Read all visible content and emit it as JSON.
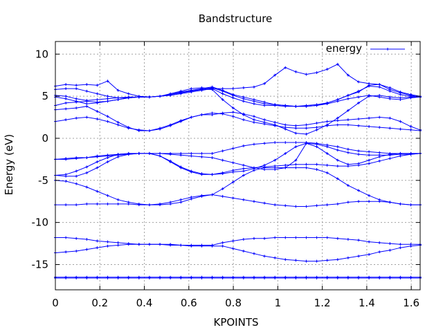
{
  "chart_data": {
    "type": "line",
    "title": "Bandstructure",
    "xlabel": "KPOINTS",
    "ylabel": "Energy (eV)",
    "xlim": [
      0,
      1.64
    ],
    "ylim": [
      -18,
      11.5
    ],
    "xticks": [
      0,
      0.2,
      0.4,
      0.6,
      0.8,
      1,
      1.2,
      1.4,
      1.6
    ],
    "xtick_labels": [
      "0",
      "0.2",
      "0.4",
      "0.6",
      "0.8",
      "1",
      "1.2",
      "1.4",
      "1.6"
    ],
    "yticks": [
      -15,
      -10,
      -5,
      0,
      5,
      10
    ],
    "ytick_labels": [
      "-15",
      "-10",
      "-5",
      "0",
      "5",
      "10"
    ],
    "grid": true,
    "legend": {
      "position": "top-right",
      "entries": [
        "energy"
      ]
    },
    "color": "#0000ff",
    "marker": "plus",
    "x": [
      0,
      0.047,
      0.094,
      0.141,
      0.188,
      0.235,
      0.282,
      0.329,
      0.376,
      0.423,
      0.47,
      0.517,
      0.564,
      0.611,
      0.658,
      0.705,
      0.752,
      0.799,
      0.846,
      0.893,
      0.94,
      0.987,
      1.034,
      1.081,
      1.128,
      1.175,
      1.222,
      1.269,
      1.316,
      1.363,
      1.41,
      1.457,
      1.504,
      1.551,
      1.598,
      1.64
    ],
    "series": [
      {
        "values": [
          -16.6,
          -16.6,
          -16.6,
          -16.6,
          -16.6,
          -16.6,
          -16.6,
          -16.6,
          -16.6,
          -16.6,
          -16.6,
          -16.6,
          -16.6,
          -16.6,
          -16.6,
          -16.6,
          -16.6,
          -16.6,
          -16.6,
          -16.6,
          -16.6,
          -16.6,
          -16.6,
          -16.6,
          -16.6,
          -16.6,
          -16.6,
          -16.6,
          -16.6,
          -16.6,
          -16.6,
          -16.6,
          -16.6,
          -16.6,
          -16.6,
          -16.6
        ]
      },
      {
        "values": [
          -16.5,
          -16.5,
          -16.5,
          -16.5,
          -16.5,
          -16.5,
          -16.5,
          -16.5,
          -16.5,
          -16.5,
          -16.5,
          -16.5,
          -16.5,
          -16.5,
          -16.5,
          -16.5,
          -16.5,
          -16.5,
          -16.5,
          -16.5,
          -16.5,
          -16.5,
          -16.5,
          -16.5,
          -16.5,
          -16.5,
          -16.5,
          -16.5,
          -16.5,
          -16.5,
          -16.5,
          -16.5,
          -16.5,
          -16.5,
          -16.5,
          -16.5
        ]
      },
      {
        "values": [
          -13.6,
          -13.5,
          -13.4,
          -13.2,
          -13.0,
          -12.8,
          -12.7,
          -12.6,
          -12.6,
          -12.6,
          -12.6,
          -12.7,
          -12.7,
          -12.8,
          -12.8,
          -12.8,
          -12.8,
          -13.1,
          -13.4,
          -13.7,
          -14.0,
          -14.2,
          -14.4,
          -14.5,
          -14.6,
          -14.6,
          -14.5,
          -14.4,
          -14.2,
          -14.0,
          -13.8,
          -13.5,
          -13.3,
          -13.0,
          -12.8,
          -12.7
        ]
      },
      {
        "values": [
          -11.8,
          -11.8,
          -11.9,
          -12.0,
          -12.2,
          -12.3,
          -12.4,
          -12.5,
          -12.6,
          -12.6,
          -12.6,
          -12.6,
          -12.7,
          -12.7,
          -12.7,
          -12.7,
          -12.4,
          -12.2,
          -12.0,
          -11.9,
          -11.9,
          -11.8,
          -11.8,
          -11.8,
          -11.8,
          -11.8,
          -11.8,
          -11.9,
          -12.0,
          -12.1,
          -12.3,
          -12.4,
          -12.5,
          -12.6,
          -12.6,
          -12.6
        ]
      },
      {
        "values": [
          -7.9,
          -7.9,
          -7.9,
          -7.8,
          -7.8,
          -7.8,
          -7.8,
          -7.8,
          -7.9,
          -7.9,
          -7.9,
          -7.8,
          -7.6,
          -7.2,
          -6.9,
          -6.7,
          -6.9,
          -7.1,
          -7.3,
          -7.5,
          -7.7,
          -7.9,
          -8.0,
          -8.1,
          -8.1,
          -8.0,
          -7.9,
          -7.8,
          -7.6,
          -7.5,
          -7.5,
          -7.5,
          -7.6,
          -7.8,
          -7.9,
          -7.9
        ]
      },
      {
        "values": [
          -5.0,
          -5.1,
          -5.4,
          -5.8,
          -6.3,
          -6.8,
          -7.3,
          -7.6,
          -7.8,
          -7.9,
          -7.8,
          -7.6,
          -7.3,
          -7.0,
          -6.8,
          -6.7,
          -6.0,
          -5.2,
          -4.4,
          -3.8,
          -3.5,
          -3.5,
          -3.5,
          -3.5,
          -3.5,
          -3.7,
          -4.1,
          -4.8,
          -5.6,
          -6.2,
          -6.8,
          -7.3,
          -7.6,
          -7.8,
          -7.9,
          -7.9
        ]
      },
      {
        "values": [
          -4.4,
          -4.3,
          -3.9,
          -3.4,
          -2.8,
          -2.3,
          -1.9,
          -1.8,
          -1.8,
          -1.8,
          -2.1,
          -2.7,
          -3.4,
          -3.9,
          -4.2,
          -4.3,
          -4.1,
          -3.8,
          -3.6,
          -3.5,
          -3.4,
          -3.3,
          -3.2,
          -3.1,
          -3.1,
          -3.1,
          -3.2,
          -3.3,
          -3.3,
          -3.2,
          -3.0,
          -2.7,
          -2.4,
          -2.1,
          -1.9,
          -1.8
        ]
      },
      {
        "values": [
          -4.4,
          -4.5,
          -4.5,
          -4.1,
          -3.5,
          -2.8,
          -2.2,
          -1.9,
          -1.8,
          -1.8,
          -2.1,
          -2.8,
          -3.5,
          -4.0,
          -4.3,
          -4.3,
          -4.2,
          -4.0,
          -3.9,
          -3.6,
          -3.2,
          -2.6,
          -1.8,
          -1.0,
          -0.6,
          -1.0,
          -1.8,
          -2.6,
          -3.1,
          -3.0,
          -2.6,
          -2.2,
          -1.9,
          -1.8,
          -1.8,
          -1.8
        ]
      },
      {
        "values": [
          -2.5,
          -2.4,
          -2.3,
          -2.3,
          -2.2,
          -2.1,
          -2.0,
          -1.9,
          -1.8,
          -1.8,
          -1.8,
          -1.9,
          -2.0,
          -2.1,
          -2.2,
          -2.3,
          -2.6,
          -2.9,
          -3.2,
          -3.5,
          -3.7,
          -3.7,
          -3.5,
          -2.6,
          -0.6,
          -0.7,
          -1.0,
          -1.4,
          -1.7,
          -1.9,
          -2.0,
          -2.0,
          -2.0,
          -1.9,
          -1.9,
          -1.8
        ]
      },
      {
        "values": [
          -2.5,
          -2.5,
          -2.4,
          -2.3,
          -2.1,
          -2.0,
          -1.9,
          -1.8,
          -1.8,
          -1.8,
          -1.8,
          -1.8,
          -1.8,
          -1.8,
          -1.8,
          -1.8,
          -1.5,
          -1.2,
          -0.9,
          -0.7,
          -0.6,
          -0.5,
          -0.5,
          -0.5,
          -0.5,
          -0.6,
          -0.8,
          -1.0,
          -1.3,
          -1.5,
          -1.6,
          -1.7,
          -1.8,
          -1.8,
          -1.8,
          -1.8
        ]
      },
      {
        "values": [
          2.0,
          2.2,
          2.4,
          2.5,
          2.3,
          2.0,
          1.6,
          1.2,
          1.0,
          0.9,
          1.1,
          1.5,
          2.0,
          2.5,
          2.8,
          3.0,
          2.9,
          2.6,
          2.2,
          1.9,
          1.7,
          1.5,
          1.3,
          1.2,
          1.2,
          1.3,
          1.5,
          1.6,
          1.6,
          1.5,
          1.4,
          1.3,
          1.2,
          1.1,
          1.0,
          0.9
        ]
      },
      {
        "values": [
          3.4,
          3.5,
          3.6,
          3.8,
          3.2,
          2.6,
          1.9,
          1.3,
          0.9,
          0.9,
          1.2,
          1.6,
          2.1,
          2.5,
          2.8,
          2.8,
          3.0,
          3.1,
          2.9,
          2.6,
          2.2,
          1.9,
          1.6,
          1.5,
          1.6,
          1.8,
          2.0,
          2.1,
          2.2,
          2.3,
          2.4,
          2.5,
          2.4,
          2.0,
          1.4,
          1.0
        ]
      },
      {
        "values": [
          3.9,
          4.2,
          4.3,
          4.4,
          4.3,
          4.4,
          4.6,
          4.8,
          4.9,
          4.9,
          5.0,
          5.2,
          5.5,
          5.7,
          5.8,
          5.8,
          4.6,
          3.6,
          2.8,
          2.2,
          1.9,
          1.6,
          1.1,
          0.6,
          0.5,
          1.0,
          1.6,
          2.4,
          3.3,
          4.2,
          5.0,
          5.1,
          4.9,
          4.8,
          4.9,
          4.9
        ]
      },
      {
        "values": [
          4.9,
          4.7,
          4.4,
          4.1,
          4.2,
          4.4,
          4.6,
          4.8,
          4.9,
          4.9,
          5.0,
          5.1,
          5.3,
          5.5,
          5.7,
          5.9,
          5.3,
          4.8,
          4.4,
          4.1,
          3.9,
          3.9,
          3.8,
          3.8,
          3.8,
          3.9,
          4.1,
          4.4,
          4.7,
          4.9,
          5.1,
          4.9,
          4.7,
          4.6,
          4.8,
          4.9
        ]
      },
      {
        "values": [
          5.1,
          5.0,
          4.7,
          4.5,
          4.6,
          4.7,
          4.8,
          4.9,
          4.9,
          4.9,
          5.0,
          5.2,
          5.4,
          5.6,
          5.8,
          6.0,
          5.6,
          5.1,
          4.7,
          4.4,
          4.1,
          4.0,
          3.9,
          3.8,
          3.9,
          4.0,
          4.2,
          4.6,
          5.1,
          5.6,
          6.2,
          6.1,
          5.6,
          5.2,
          5.0,
          4.9
        ]
      },
      {
        "values": [
          5.8,
          5.9,
          5.9,
          5.6,
          5.3,
          5.0,
          4.8,
          4.8,
          4.9,
          4.9,
          5.0,
          5.2,
          5.4,
          5.7,
          5.9,
          6.1,
          5.7,
          5.2,
          4.9,
          4.6,
          4.3,
          4.0,
          3.9,
          3.8,
          3.8,
          3.9,
          4.2,
          4.6,
          5.1,
          5.5,
          6.3,
          6.4,
          6.0,
          5.5,
          5.2,
          5.0
        ]
      },
      {
        "values": [
          6.2,
          6.4,
          6.3,
          6.4,
          6.3,
          6.8,
          5.7,
          5.3,
          5.0,
          4.9,
          5.0,
          5.3,
          5.6,
          5.9,
          6.0,
          5.9,
          5.9,
          5.9,
          6.0,
          6.1,
          6.5,
          7.5,
          8.4,
          7.9,
          7.6,
          7.8,
          8.2,
          8.8,
          7.5,
          6.7,
          6.5,
          6.4,
          5.8,
          5.4,
          5.1,
          4.9
        ]
      }
    ]
  }
}
